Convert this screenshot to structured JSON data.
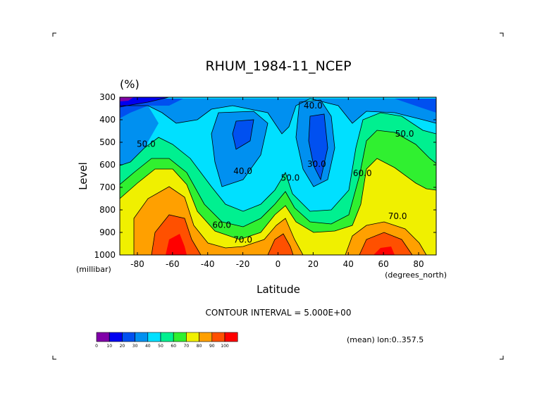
{
  "chart_data": {
    "type": "contour",
    "title": "RHUM_1984-11_NCEP",
    "units": "(%)",
    "xlabel": "Latitude",
    "xunits": "(degrees_north)",
    "ylabel": "Level",
    "yunits": "(millibar)",
    "xlim": [
      -90,
      90
    ],
    "ylim": [
      1000,
      300
    ],
    "x_ticks": [
      -80,
      -60,
      -40,
      -20,
      0,
      20,
      40,
      60,
      80
    ],
    "y_ticks": [
      300,
      400,
      500,
      600,
      700,
      800,
      900,
      1000
    ],
    "contour_interval_text": "CONTOUR INTERVAL = 5.000E+00",
    "mean_text": "(mean) lon:0..357.5",
    "colorbar": {
      "ticks": [
        "0",
        "10",
        "20",
        "30",
        "40",
        "50",
        "60",
        "70",
        "80",
        "90",
        "100"
      ],
      "colors": [
        "#8000a8",
        "#0000f0",
        "#0050f0",
        "#0090f0",
        "#00e0ff",
        "#00f090",
        "#30f030",
        "#f0f000",
        "#ffa000",
        "#ff5000",
        "#ff0000"
      ]
    },
    "contour_labels": [
      {
        "text": "40.0",
        "x": 20,
        "y": 350
      },
      {
        "text": "40.0",
        "x": -20,
        "y": 640
      },
      {
        "text": "30.0",
        "x": 22,
        "y": 610
      },
      {
        "text": "50.0",
        "x": -75,
        "y": 520
      },
      {
        "text": "50.0",
        "x": 7,
        "y": 670
      },
      {
        "text": "50.0",
        "x": 72,
        "y": 475
      },
      {
        "text": "60.0",
        "x": 48,
        "y": 650
      },
      {
        "text": "60.0",
        "x": -32,
        "y": 880
      },
      {
        "text": "70.0",
        "x": 68,
        "y": 840
      },
      {
        "text": "70.0",
        "x": -20,
        "y": 945
      }
    ]
  }
}
